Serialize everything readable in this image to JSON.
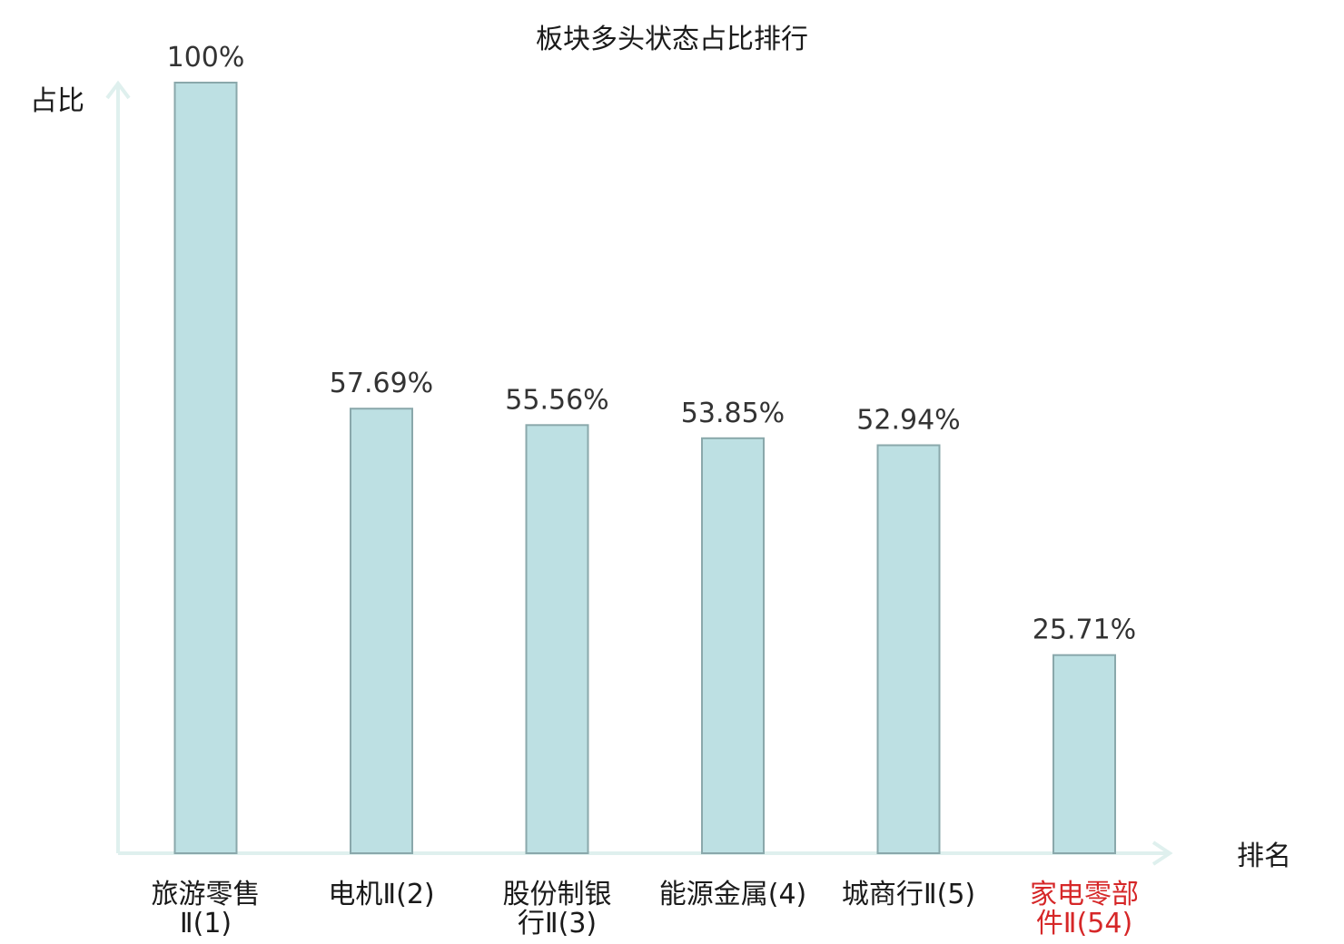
{
  "chart_data": {
    "type": "bar",
    "title": "板块多头状态占比排行",
    "ylabel": "占比",
    "xlabel": "排名",
    "ylim": [
      0,
      100
    ],
    "grid": false,
    "categories": [
      [
        "旅游零售",
        "Ⅱ(1)"
      ],
      [
        "电机Ⅱ(2)"
      ],
      [
        "股份制银",
        "行Ⅱ(3)"
      ],
      [
        "能源金属(4)"
      ],
      [
        "城商行Ⅱ(5)"
      ],
      [
        "家电零部",
        "件Ⅱ(54)"
      ]
    ],
    "values": [
      100,
      57.69,
      55.56,
      53.85,
      52.94,
      25.71
    ],
    "value_labels": [
      "100%",
      "57.69%",
      "55.56%",
      "53.85%",
      "52.94%",
      "25.71%"
    ],
    "highlight_index": 5,
    "colors": {
      "bar_fill": "#bde0e3",
      "bar_stroke": "#8aa8ab",
      "axis": "#dff0ee",
      "highlight_text": "#d62728"
    }
  }
}
